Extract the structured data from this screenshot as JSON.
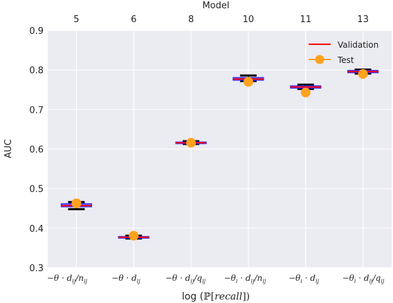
{
  "chart_data": {
    "type": "box",
    "top_axis_label": "Model",
    "top_tick_labels": [
      "5",
      "6",
      "8",
      "10",
      "11",
      "13"
    ],
    "xlabel": "log (ℙ[recall])",
    "ylabel": "AUC",
    "ylim": [
      0.3,
      0.9
    ],
    "yticks": [
      0.3,
      0.4,
      0.5,
      0.6,
      0.7,
      0.8,
      0.9
    ],
    "ytick_labels": [
      "0.3",
      "0.4",
      "0.5",
      "0.6",
      "0.7",
      "0.8",
      "0.9"
    ],
    "categories": [
      "−θ · d_ij / n_ij",
      "−θ · d_ij",
      "−θ · d_ij / q_ij",
      "−θ_i · d_ij / n_ij",
      "−θ_i · d_ij",
      "−θ_i · d_ij / q_ij"
    ],
    "grid": true,
    "legend_position": "top-right",
    "legend": [
      "Validation",
      "Test"
    ],
    "series": [
      {
        "name": "Validation",
        "kind": "box",
        "boxes": [
          {
            "q1": 0.454,
            "median": 0.457,
            "q3": 0.462,
            "whisker_low": 0.448,
            "whisker_high": 0.466
          },
          {
            "q1": 0.375,
            "median": 0.377,
            "q3": 0.379,
            "whisker_low": 0.374,
            "whisker_high": 0.381
          },
          {
            "q1": 0.614,
            "median": 0.616,
            "q3": 0.618,
            "whisker_low": 0.613,
            "whisker_high": 0.62
          },
          {
            "q1": 0.774,
            "median": 0.777,
            "q3": 0.781,
            "whisker_low": 0.772,
            "whisker_high": 0.786
          },
          {
            "q1": 0.754,
            "median": 0.757,
            "q3": 0.76,
            "whisker_low": 0.752,
            "whisker_high": 0.763
          },
          {
            "q1": 0.793,
            "median": 0.796,
            "q3": 0.799,
            "whisker_low": 0.791,
            "whisker_high": 0.801
          }
        ]
      },
      {
        "name": "Test",
        "kind": "point",
        "values": [
          0.463,
          0.381,
          0.616,
          0.77,
          0.743,
          0.79
        ]
      }
    ],
    "colors": {
      "validation_line": "#ff0000",
      "box_face": "#6b5fff",
      "box_edge": "#2a2aff",
      "whisker": "#000000",
      "test_marker": "#ffa21e",
      "plot_background": "#ebebf2",
      "grid": "#ffffff"
    }
  }
}
